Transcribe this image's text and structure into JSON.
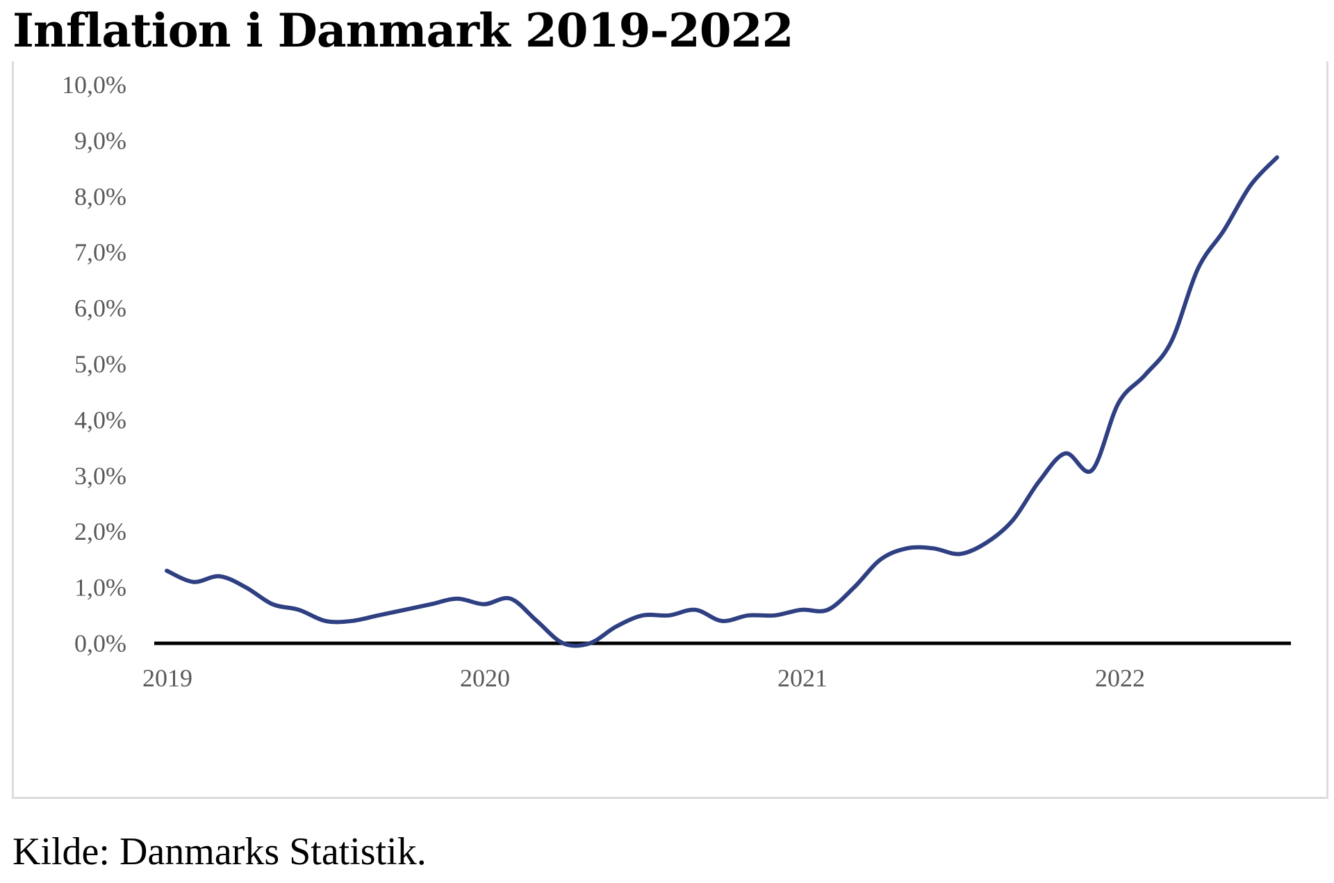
{
  "page": {
    "title": "Inflation i Danmark 2019-2022",
    "source": "Kilde: Danmarks Statistik."
  },
  "chart_data": {
    "type": "line",
    "title": "Inflation i Danmark 2019-2022",
    "xlabel": "",
    "ylabel": "",
    "ylim": [
      0,
      10
    ],
    "y_ticks": [
      "0,0%",
      "1,0%",
      "2,0%",
      "3,0%",
      "4,0%",
      "5,0%",
      "6,0%",
      "7,0%",
      "8,0%",
      "9,0%",
      "10,0%"
    ],
    "x_ticks": [
      "2019",
      "2020",
      "2021",
      "2022"
    ],
    "x": [
      "2019-01",
      "2019-02",
      "2019-03",
      "2019-04",
      "2019-05",
      "2019-06",
      "2019-07",
      "2019-08",
      "2019-09",
      "2019-10",
      "2019-11",
      "2019-12",
      "2020-01",
      "2020-02",
      "2020-03",
      "2020-04",
      "2020-05",
      "2020-06",
      "2020-07",
      "2020-08",
      "2020-09",
      "2020-10",
      "2020-11",
      "2020-12",
      "2021-01",
      "2021-02",
      "2021-03",
      "2021-04",
      "2021-05",
      "2021-06",
      "2021-07",
      "2021-08",
      "2021-09",
      "2021-10",
      "2021-11",
      "2021-12",
      "2022-01",
      "2022-02",
      "2022-03",
      "2022-04",
      "2022-05",
      "2022-06",
      "2022-07"
    ],
    "series": [
      {
        "values": [
          1.3,
          1.1,
          1.2,
          1.0,
          0.7,
          0.6,
          0.4,
          0.4,
          0.5,
          0.6,
          0.7,
          0.8,
          0.7,
          0.8,
          0.4,
          0.0,
          0.0,
          0.3,
          0.5,
          0.5,
          0.6,
          0.4,
          0.5,
          0.5,
          0.6,
          0.6,
          1.0,
          1.5,
          1.7,
          1.7,
          1.6,
          1.8,
          2.2,
          2.9,
          3.4,
          3.1,
          4.3,
          4.8,
          5.4,
          6.7,
          7.4,
          8.2,
          8.7
        ]
      }
    ],
    "grid": false,
    "legend": "none",
    "line_color": "#2e3f82",
    "zero_line_color": "#000000",
    "tick_color": "#595959"
  }
}
